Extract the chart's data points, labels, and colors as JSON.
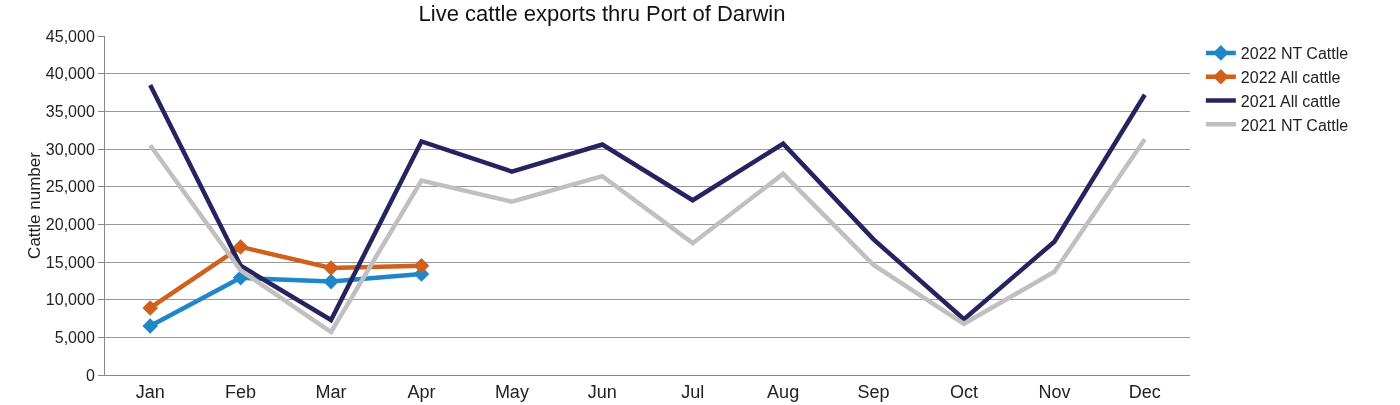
{
  "chart_data": {
    "type": "line",
    "title": "Live cattle exports thru Port of Darwin",
    "ylabel": "Cattle number",
    "categories": [
      "Jan",
      "Feb",
      "Mar",
      "Apr",
      "May",
      "Jun",
      "Jul",
      "Aug",
      "Sep",
      "Oct",
      "Nov",
      "Dec"
    ],
    "ylim": [
      0,
      45000
    ],
    "yticks": [
      {
        "value": 0,
        "label": "0"
      },
      {
        "value": 5000,
        "label": "5,000"
      },
      {
        "value": 10000,
        "label": "10,000"
      },
      {
        "value": 15000,
        "label": "15,000"
      },
      {
        "value": 20000,
        "label": "20,000"
      },
      {
        "value": 25000,
        "label": "25,000"
      },
      {
        "value": 30000,
        "label": "30,000"
      },
      {
        "value": 35000,
        "label": "35,000"
      },
      {
        "value": 40000,
        "label": "40,000"
      },
      {
        "value": 45000,
        "label": "45,000"
      }
    ],
    "grid": "y",
    "legend": "right",
    "series": [
      {
        "name": "2022 NT Cattle",
        "color": "#1f87c8",
        "marker": "diamond",
        "values": [
          6500,
          12900,
          12400,
          13400,
          null,
          null,
          null,
          null,
          null,
          null,
          null,
          null
        ]
      },
      {
        "name": "2022 All cattle",
        "color": "#d0601a",
        "marker": "diamond",
        "values": [
          8900,
          17000,
          14200,
          14500,
          null,
          null,
          null,
          null,
          null,
          null,
          null,
          null
        ]
      },
      {
        "name": "2021 All cattle",
        "color": "#25245e",
        "marker": "none",
        "values": [
          38500,
          14500,
          7300,
          31000,
          27000,
          30600,
          23200,
          30700,
          18000,
          7400,
          17700,
          37200
        ]
      },
      {
        "name": "2021 NT Cattle",
        "color": "#c0c0c0",
        "marker": "none",
        "values": [
          30500,
          13900,
          5700,
          25800,
          23000,
          26400,
          17500,
          26700,
          14600,
          6800,
          13700,
          31300
        ]
      }
    ]
  }
}
